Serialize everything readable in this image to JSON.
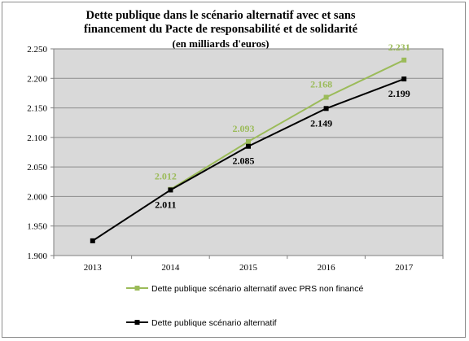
{
  "chart_data": {
    "type": "line",
    "title_lines": [
      "Dette  publique dans le scénario alternatif avec et sans",
      "financement du Pacte de responsabilité et de solidarité"
    ],
    "subtitle": "(en milliards d'euros)",
    "xlabel": "",
    "ylabel": "",
    "categories": [
      "2013",
      "2014",
      "2015",
      "2016",
      "2017"
    ],
    "ylim": [
      1900,
      2250
    ],
    "yticks": [
      1900,
      1950,
      2000,
      2050,
      2100,
      2150,
      2200,
      2250
    ],
    "ytick_labels": [
      "1.900",
      "1.950",
      "2.000",
      "2.050",
      "2.100",
      "2.150",
      "2.200",
      "2.250"
    ],
    "grid": "horizontal",
    "plot_background": "#d9d9d9",
    "legend_position": "bottom",
    "series": [
      {
        "name": "Dette publique scénario alternatif avec PRS non financé",
        "color": "#9bbb59",
        "marker": "square",
        "values": [
          null,
          2012,
          2093,
          2168,
          2231
        ],
        "labels": [
          "",
          "2.012",
          "2.093",
          "2.168",
          "2.231"
        ],
        "label_position": "above"
      },
      {
        "name": "Dette publique scénario alternatif",
        "color": "#000000",
        "marker": "square",
        "values": [
          1925,
          2011,
          2085,
          2149,
          2199
        ],
        "labels": [
          "",
          "2.011",
          "2.085",
          "2.149",
          "2.199"
        ],
        "label_position": "below"
      }
    ]
  }
}
